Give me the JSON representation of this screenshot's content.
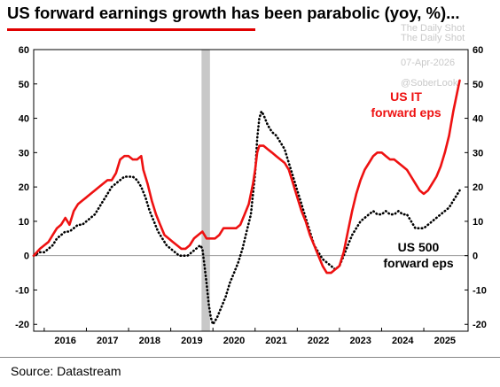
{
  "chart_data": {
    "type": "line",
    "title": "US forward earnings growth has been parabolic (yoy, %)...",
    "xlabel": "",
    "ylabel": "",
    "xlim": [
      2015.75,
      2026.05
    ],
    "ylim": [
      -22,
      60
    ],
    "yticks": [
      -20,
      -10,
      0,
      10,
      20,
      30,
      40,
      50,
      60
    ],
    "xticks": [
      "2016",
      "2017",
      "2018",
      "2019",
      "2020",
      "2021",
      "2022",
      "2023",
      "2024",
      "2025"
    ],
    "grid": false,
    "zero_line": true,
    "shaded_period": [
      2019.73,
      2019.93
    ],
    "series": [
      {
        "name": "US IT forward eps",
        "label": [
          "US IT",
          "forward eps"
        ],
        "color": "#ee1111",
        "style": "solid",
        "points": [
          [
            2015.75,
            0
          ],
          [
            2015.9,
            2
          ],
          [
            2016.0,
            3
          ],
          [
            2016.1,
            4
          ],
          [
            2016.2,
            6
          ],
          [
            2016.3,
            8
          ],
          [
            2016.4,
            9
          ],
          [
            2016.5,
            11
          ],
          [
            2016.6,
            9
          ],
          [
            2016.7,
            13
          ],
          [
            2016.8,
            15
          ],
          [
            2016.9,
            16
          ],
          [
            2017.0,
            17
          ],
          [
            2017.1,
            18
          ],
          [
            2017.2,
            19
          ],
          [
            2017.3,
            20
          ],
          [
            2017.4,
            21
          ],
          [
            2017.5,
            22
          ],
          [
            2017.6,
            22
          ],
          [
            2017.7,
            24
          ],
          [
            2017.8,
            28
          ],
          [
            2017.9,
            29
          ],
          [
            2018.0,
            29
          ],
          [
            2018.1,
            28
          ],
          [
            2018.2,
            28
          ],
          [
            2018.3,
            29
          ],
          [
            2018.35,
            25
          ],
          [
            2018.45,
            21
          ],
          [
            2018.55,
            16
          ],
          [
            2018.65,
            12
          ],
          [
            2018.75,
            9
          ],
          [
            2018.85,
            6
          ],
          [
            2018.95,
            5
          ],
          [
            2019.05,
            4
          ],
          [
            2019.15,
            3
          ],
          [
            2019.25,
            2
          ],
          [
            2019.35,
            2
          ],
          [
            2019.45,
            3
          ],
          [
            2019.55,
            5
          ],
          [
            2019.65,
            6
          ],
          [
            2019.75,
            7
          ],
          [
            2019.85,
            5
          ],
          [
            2019.95,
            5
          ],
          [
            2020.05,
            5
          ],
          [
            2020.15,
            6
          ],
          [
            2020.25,
            8
          ],
          [
            2020.35,
            8
          ],
          [
            2020.45,
            8
          ],
          [
            2020.55,
            8
          ],
          [
            2020.65,
            9
          ],
          [
            2020.75,
            12
          ],
          [
            2020.85,
            15
          ],
          [
            2020.95,
            21
          ],
          [
            2021.0,
            25
          ],
          [
            2021.05,
            30
          ],
          [
            2021.1,
            32
          ],
          [
            2021.2,
            32
          ],
          [
            2021.3,
            31
          ],
          [
            2021.4,
            30
          ],
          [
            2021.5,
            29
          ],
          [
            2021.6,
            28
          ],
          [
            2021.7,
            27
          ],
          [
            2021.8,
            25
          ],
          [
            2021.9,
            21
          ],
          [
            2022.0,
            17
          ],
          [
            2022.1,
            13
          ],
          [
            2022.2,
            10
          ],
          [
            2022.3,
            6
          ],
          [
            2022.4,
            3
          ],
          [
            2022.5,
            0
          ],
          [
            2022.6,
            -3
          ],
          [
            2022.7,
            -5
          ],
          [
            2022.8,
            -5
          ],
          [
            2022.9,
            -4
          ],
          [
            2023.0,
            -3
          ],
          [
            2023.1,
            1
          ],
          [
            2023.2,
            7
          ],
          [
            2023.3,
            13
          ],
          [
            2023.4,
            18
          ],
          [
            2023.5,
            22
          ],
          [
            2023.6,
            25
          ],
          [
            2023.7,
            27
          ],
          [
            2023.8,
            29
          ],
          [
            2023.9,
            30
          ],
          [
            2024.0,
            30
          ],
          [
            2024.1,
            29
          ],
          [
            2024.2,
            28
          ],
          [
            2024.3,
            28
          ],
          [
            2024.4,
            27
          ],
          [
            2024.5,
            26
          ],
          [
            2024.6,
            25
          ],
          [
            2024.7,
            23
          ],
          [
            2024.8,
            21
          ],
          [
            2024.9,
            19
          ],
          [
            2025.0,
            18
          ],
          [
            2025.1,
            19
          ],
          [
            2025.2,
            21
          ],
          [
            2025.3,
            23
          ],
          [
            2025.4,
            26
          ],
          [
            2025.5,
            30
          ],
          [
            2025.6,
            35
          ],
          [
            2025.7,
            42
          ],
          [
            2025.75,
            45
          ],
          [
            2025.8,
            48
          ],
          [
            2025.85,
            51
          ]
        ]
      },
      {
        "name": "US 500 forward eps",
        "label": [
          "US 500",
          "forward eps"
        ],
        "color": "#000000",
        "style": "dotted",
        "points": [
          [
            2015.75,
            0
          ],
          [
            2015.9,
            1
          ],
          [
            2016.0,
            1
          ],
          [
            2016.1,
            2
          ],
          [
            2016.2,
            3
          ],
          [
            2016.3,
            5
          ],
          [
            2016.4,
            6
          ],
          [
            2016.5,
            7
          ],
          [
            2016.6,
            7
          ],
          [
            2016.7,
            8
          ],
          [
            2016.8,
            9
          ],
          [
            2016.9,
            9
          ],
          [
            2017.0,
            10
          ],
          [
            2017.1,
            11
          ],
          [
            2017.2,
            12
          ],
          [
            2017.3,
            14
          ],
          [
            2017.4,
            16
          ],
          [
            2017.5,
            18
          ],
          [
            2017.6,
            20
          ],
          [
            2017.7,
            21
          ],
          [
            2017.8,
            22
          ],
          [
            2017.9,
            23
          ],
          [
            2018.0,
            23
          ],
          [
            2018.1,
            23
          ],
          [
            2018.2,
            22
          ],
          [
            2018.3,
            20
          ],
          [
            2018.4,
            17
          ],
          [
            2018.5,
            13
          ],
          [
            2018.6,
            10
          ],
          [
            2018.7,
            7
          ],
          [
            2018.8,
            5
          ],
          [
            2018.9,
            3
          ],
          [
            2019.0,
            2
          ],
          [
            2019.1,
            1
          ],
          [
            2019.2,
            0
          ],
          [
            2019.3,
            0
          ],
          [
            2019.4,
            0
          ],
          [
            2019.5,
            1
          ],
          [
            2019.6,
            2
          ],
          [
            2019.7,
            3
          ],
          [
            2019.75,
            2
          ],
          [
            2019.8,
            -3
          ],
          [
            2019.85,
            -8
          ],
          [
            2019.9,
            -14
          ],
          [
            2019.95,
            -18
          ],
          [
            2020.0,
            -20
          ],
          [
            2020.05,
            -19
          ],
          [
            2020.1,
            -18
          ],
          [
            2020.2,
            -15
          ],
          [
            2020.3,
            -12
          ],
          [
            2020.4,
            -8
          ],
          [
            2020.5,
            -5
          ],
          [
            2020.6,
            -2
          ],
          [
            2020.7,
            2
          ],
          [
            2020.8,
            7
          ],
          [
            2020.9,
            12
          ],
          [
            2021.0,
            24
          ],
          [
            2021.05,
            34
          ],
          [
            2021.1,
            40
          ],
          [
            2021.15,
            42
          ],
          [
            2021.2,
            41
          ],
          [
            2021.3,
            38
          ],
          [
            2021.4,
            36
          ],
          [
            2021.5,
            35
          ],
          [
            2021.6,
            33
          ],
          [
            2021.7,
            31
          ],
          [
            2021.8,
            27
          ],
          [
            2021.9,
            23
          ],
          [
            2022.0,
            19
          ],
          [
            2022.1,
            15
          ],
          [
            2022.2,
            11
          ],
          [
            2022.3,
            7
          ],
          [
            2022.4,
            3
          ],
          [
            2022.5,
            1
          ],
          [
            2022.6,
            -1
          ],
          [
            2022.7,
            -2
          ],
          [
            2022.8,
            -3
          ],
          [
            2022.9,
            -4
          ],
          [
            2023.0,
            -3
          ],
          [
            2023.1,
            0
          ],
          [
            2023.2,
            3
          ],
          [
            2023.3,
            6
          ],
          [
            2023.4,
            8
          ],
          [
            2023.5,
            10
          ],
          [
            2023.6,
            11
          ],
          [
            2023.7,
            12
          ],
          [
            2023.8,
            13
          ],
          [
            2023.9,
            12
          ],
          [
            2024.0,
            12
          ],
          [
            2024.1,
            13
          ],
          [
            2024.2,
            12
          ],
          [
            2024.3,
            12
          ],
          [
            2024.4,
            13
          ],
          [
            2024.5,
            12
          ],
          [
            2024.6,
            12
          ],
          [
            2024.7,
            10
          ],
          [
            2024.8,
            8
          ],
          [
            2024.9,
            8
          ],
          [
            2025.0,
            8
          ],
          [
            2025.1,
            9
          ],
          [
            2025.2,
            10
          ],
          [
            2025.3,
            11
          ],
          [
            2025.4,
            12
          ],
          [
            2025.5,
            13
          ],
          [
            2025.6,
            14
          ],
          [
            2025.7,
            16
          ],
          [
            2025.8,
            18
          ],
          [
            2025.85,
            19
          ]
        ]
      }
    ],
    "source": "Source: Datastream"
  },
  "watermark": {
    "line1": "The Daily Shot",
    "line2": "07-Apr-2026",
    "line3": "@SoberLook"
  },
  "colors": {
    "accent": "#e00000",
    "shade": "#c8c8c8"
  }
}
